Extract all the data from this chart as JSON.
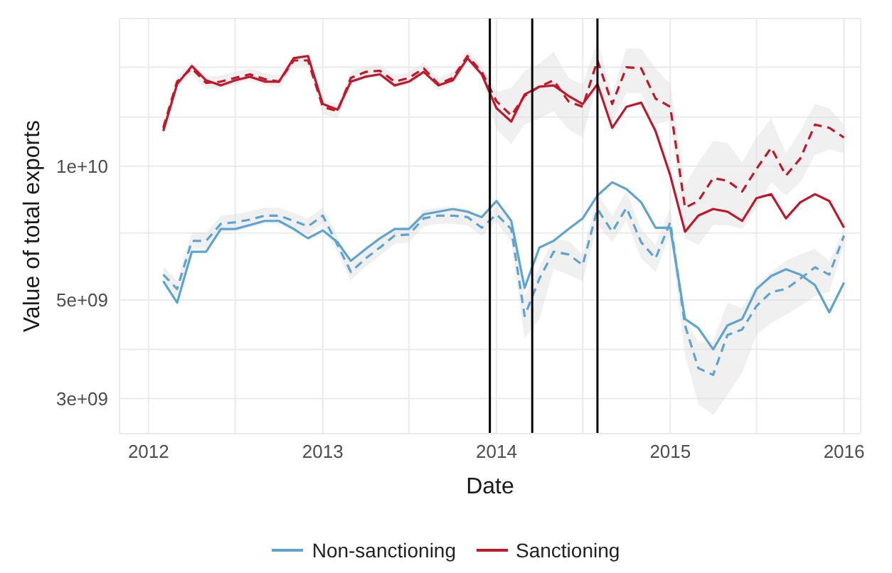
{
  "chart_data": {
    "type": "line",
    "xlabel": "Date",
    "ylabel": "Value of total exports",
    "x": [
      "2012-02",
      "2012-03",
      "2012-04",
      "2012-05",
      "2012-06",
      "2012-07",
      "2012-08",
      "2012-09",
      "2012-10",
      "2012-11",
      "2012-12",
      "2013-01",
      "2013-02",
      "2013-03",
      "2013-04",
      "2013-05",
      "2013-06",
      "2013-07",
      "2013-08",
      "2013-09",
      "2013-10",
      "2013-11",
      "2013-12",
      "2014-01",
      "2014-02",
      "2014-03",
      "2014-04",
      "2014-05",
      "2014-06",
      "2014-07",
      "2014-08",
      "2014-09",
      "2014-10",
      "2014-11",
      "2014-12",
      "2015-01",
      "2015-02",
      "2015-03",
      "2015-04",
      "2015-05",
      "2015-06",
      "2015-07",
      "2015-08",
      "2015-09",
      "2015-10",
      "2015-11",
      "2015-12",
      "2016-01"
    ],
    "series": [
      {
        "name": "Non-sanctioning",
        "color": "#5fa3d0",
        "line_style": "solid",
        "values": [
          5510000000.0,
          4930000000.0,
          6420000000.0,
          6420000000.0,
          7220000000.0,
          7220000000.0,
          7370000000.0,
          7530000000.0,
          7530000000.0,
          7220000000.0,
          6880000000.0,
          7170000000.0,
          6740000000.0,
          6120000000.0,
          6510000000.0,
          6880000000.0,
          7220000000.0,
          7220000000.0,
          7790000000.0,
          7900000000.0,
          8010000000.0,
          7900000000.0,
          7680000000.0,
          8350000000.0,
          7530000000.0,
          5320000000.0,
          6560000000.0,
          6790000000.0,
          7220000000.0,
          7630000000.0,
          8590000000.0,
          9200000000.0,
          8880000000.0,
          8290000000.0,
          7270000000.0,
          7270000000.0,
          4530000000.0,
          4320000000.0,
          3870000000.0,
          4380000000.0,
          4530000000.0,
          5290000000.0,
          5660000000.0,
          5860000000.0,
          5700000000.0,
          5400000000.0,
          4690000000.0,
          5470000000.0
        ]
      },
      {
        "color": "#5fa3d0",
        "line_style": "dashed",
        "values": [
          5700000000.0,
          5290000000.0,
          6790000000.0,
          6790000000.0,
          7420000000.0,
          7480000000.0,
          7580000000.0,
          7740000000.0,
          7740000000.0,
          7530000000.0,
          7320000000.0,
          7740000000.0,
          6650000000.0,
          5780000000.0,
          6200000000.0,
          6560000000.0,
          6980000000.0,
          7020000000.0,
          7630000000.0,
          7740000000.0,
          7740000000.0,
          7680000000.0,
          7270000000.0,
          7790000000.0,
          7220000000.0,
          4600000000.0,
          5580000000.0,
          6420000000.0,
          6330000000.0,
          5990000000.0,
          8010000000.0,
          7120000000.0,
          8060000000.0,
          6740000000.0,
          6200000000.0,
          7480000000.0,
          4380000000.0,
          3510000000.0,
          3390000000.0,
          4170000000.0,
          4290000000.0,
          4840000000.0,
          5210000000.0,
          5290000000.0,
          5580000000.0,
          5920000000.0,
          5700000000.0,
          6980000000.0
        ],
        "lower": [
          5470000000.0,
          5070000000.0,
          6510000000.0,
          6510000000.0,
          7110000000.0,
          7170000000.0,
          7270000000.0,
          7420000000.0,
          7420000000.0,
          7220000000.0,
          7020000000.0,
          7420000000.0,
          6380000000.0,
          5540000000.0,
          5940000000.0,
          6290000000.0,
          6690000000.0,
          6730000000.0,
          7320000000.0,
          7420000000.0,
          7420000000.0,
          7360000000.0,
          6970000000.0,
          7480000000.0,
          6740000000.0,
          4090000000.0,
          4530000000.0,
          5860000000.0,
          5700000000.0,
          5510000000.0,
          7370000000.0,
          6740000000.0,
          7530000000.0,
          6200000000.0,
          5780000000.0,
          7020000000.0,
          3760000000.0,
          2920000000.0,
          2750000000.0,
          3060000000.0,
          3430000000.0,
          4170000000.0,
          4440000000.0,
          4630000000.0,
          4840000000.0,
          5110000000.0,
          5210000000.0,
          6650000000.0
        ],
        "upper": [
          5950000000.0,
          5520000000.0,
          7080000000.0,
          7080000000.0,
          7740000000.0,
          7800000000.0,
          7910000000.0,
          8070000000.0,
          8070000000.0,
          7850000000.0,
          7630000000.0,
          8070000000.0,
          6940000000.0,
          6030000000.0,
          6470000000.0,
          6840000000.0,
          7280000000.0,
          7320000000.0,
          7960000000.0,
          8070000000.0,
          8070000000.0,
          8010000000.0,
          7580000000.0,
          8120000000.0,
          7530000000.0,
          5110000000.0,
          5920000000.0,
          6880000000.0,
          6790000000.0,
          6330000000.0,
          8650000000.0,
          7740000000.0,
          8770000000.0,
          7220000000.0,
          6650000000.0,
          8060000000.0,
          4530000000.0,
          4030000000.0,
          4030000000.0,
          4930000000.0,
          4800000000.0,
          5400000000.0,
          5780000000.0,
          6120000000.0,
          6330000000.0,
          6510000000.0,
          6120000000.0,
          7220000000.0
        ]
      },
      {
        "name": "Sanctioning",
        "color": "#c0182a",
        "line_style": "solid",
        "values": [
          12000000000.0,
          15300000000.0,
          16800000000.0,
          15600000000.0,
          15200000000.0,
          15600000000.0,
          15900000000.0,
          15500000000.0,
          15500000000.0,
          17500000000.0,
          17700000000.0,
          13800000000.0,
          13400000000.0,
          15500000000.0,
          15900000000.0,
          16100000000.0,
          15200000000.0,
          15500000000.0,
          16300000000.0,
          15200000000.0,
          15600000000.0,
          17500000000.0,
          16100000000.0,
          13500000000.0,
          12600000000.0,
          14500000000.0,
          15100000000.0,
          15200000000.0,
          14400000000.0,
          13800000000.0,
          15300000000.0,
          12200000000.0,
          13600000000.0,
          13900000000.0,
          12000000000.0,
          9530000000.0,
          7120000000.0,
          7740000000.0,
          8010000000.0,
          7900000000.0,
          7530000000.0,
          8470000000.0,
          8650000000.0,
          7630000000.0,
          8290000000.0,
          8650000000.0,
          8350000000.0,
          7270000000.0
        ]
      },
      {
        "color": "#c0182a",
        "line_style": "dashed",
        "values": [
          12200000000.0,
          15500000000.0,
          16600000000.0,
          15400000000.0,
          15500000000.0,
          15800000000.0,
          16100000000.0,
          15700000000.0,
          15500000000.0,
          17300000000.0,
          17300000000.0,
          13600000000.0,
          13300000000.0,
          15800000000.0,
          16300000000.0,
          16400000000.0,
          15500000000.0,
          15800000000.0,
          16600000000.0,
          15300000000.0,
          15800000000.0,
          17700000000.0,
          16300000000.0,
          14000000000.0,
          13000000000.0,
          14400000000.0,
          15100000000.0,
          15600000000.0,
          14000000000.0,
          13600000000.0,
          17300000000.0,
          13800000000.0,
          16700000000.0,
          16600000000.0,
          14200000000.0,
          13600000000.0,
          8060000000.0,
          8350000000.0,
          9400000000.0,
          9270000000.0,
          8770000000.0,
          9860000000.0,
          11000000000.0,
          9530000000.0,
          10400000000.0,
          12400000000.0,
          12200000000.0,
          11600000000.0
        ],
        "lower": [
          11700000000.0,
          15000000000.0,
          16100000000.0,
          14900000000.0,
          15000000000.0,
          15300000000.0,
          15600000000.0,
          15200000000.0,
          15000000000.0,
          16800000000.0,
          16800000000.0,
          13100000000.0,
          12800000000.0,
          15300000000.0,
          15800000000.0,
          15900000000.0,
          15000000000.0,
          15300000000.0,
          16100000000.0,
          14800000000.0,
          15300000000.0,
          17200000000.0,
          15800000000.0,
          12100000000.0,
          11200000000.0,
          12400000000.0,
          12800000000.0,
          13300000000.0,
          12100000000.0,
          11600000000.0,
          15500000000.0,
          12600000000.0,
          14600000000.0,
          14600000000.0,
          12400000000.0,
          12700000000.0,
          6880000000.0,
          6650000000.0,
          7370000000.0,
          7370000000.0,
          7220000000.0,
          8060000000.0,
          9200000000.0,
          8590000000.0,
          9200000000.0,
          10600000000.0,
          10900000000.0,
          10700000000.0
        ],
        "upper": [
          12700000000.0,
          16000000000.0,
          17100000000.0,
          15900000000.0,
          16000000000.0,
          16300000000.0,
          16600000000.0,
          16200000000.0,
          16000000000.0,
          17800000000.0,
          17800000000.0,
          14100000000.0,
          13800000000.0,
          16300000000.0,
          16800000000.0,
          16900000000.0,
          16000000000.0,
          16300000000.0,
          17100000000.0,
          15800000000.0,
          16300000000.0,
          18200000000.0,
          16800000000.0,
          14700000000.0,
          15000000000.0,
          16400000000.0,
          17000000000.0,
          18100000000.0,
          15800000000.0,
          15300000000.0,
          19100000000.0,
          14600000000.0,
          18400000000.0,
          18400000000.0,
          16600000000.0,
          15300000000.0,
          9080000000.0,
          10200000000.0,
          11400000000.0,
          11300000000.0,
          10200000000.0,
          11600000000.0,
          12800000000.0,
          10700000000.0,
          12000000000.0,
          13800000000.0,
          13500000000.0,
          12400000000.0
        ]
      }
    ],
    "log": "y",
    "ylim": [
      2500000000.0,
      21500000000.0
    ],
    "yticks": [
      {
        "value": 3000000000.0,
        "label": "3e+09"
      },
      {
        "value": 3870000000.0,
        "label": null
      },
      {
        "value": 5000000000.0,
        "label": "5e+09"
      },
      {
        "value": 7070000000.0,
        "label": null
      },
      {
        "value": 10000000000.0,
        "label": "1e+10"
      },
      {
        "value": 12900000000.0,
        "label": null
      },
      {
        "value": 16700000000.0,
        "label": null
      }
    ],
    "xlim": [
      "2011-11-01",
      "2016-02-05"
    ],
    "xticks": [
      {
        "value": "2012",
        "label": "2012"
      },
      {
        "value": "2012-07",
        "label": null
      },
      {
        "value": "2013",
        "label": "2013"
      },
      {
        "value": "2013-07",
        "label": null
      },
      {
        "value": "2014",
        "label": "2014"
      },
      {
        "value": "2014-07",
        "label": null
      },
      {
        "value": "2015",
        "label": "2015"
      },
      {
        "value": "2015-07",
        "label": null
      },
      {
        "value": "2016",
        "label": "2016"
      }
    ],
    "ref_lines": [
      {
        "axis": "x",
        "value": "2013-12-18",
        "color": "#000000"
      },
      {
        "axis": "x",
        "value": "2014-03-17",
        "color": "#000000"
      },
      {
        "axis": "x",
        "value": "2014-08-01",
        "color": "#000000"
      }
    ],
    "grid": true,
    "legend": "bottom"
  }
}
